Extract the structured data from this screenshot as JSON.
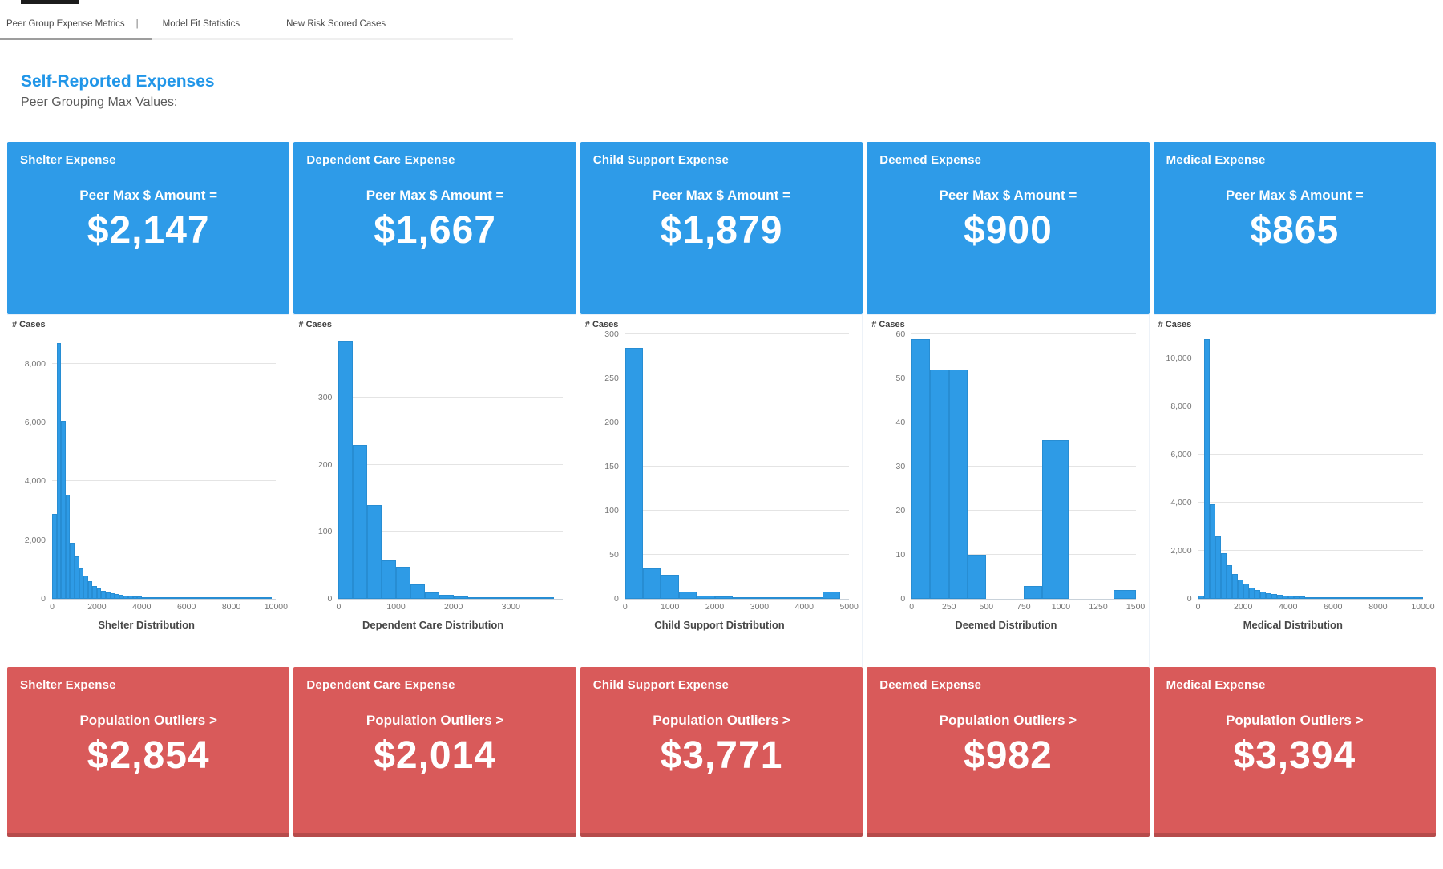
{
  "tabs": {
    "separator": "|",
    "items": [
      {
        "label": "Peer Group Expense Metrics",
        "active": true
      },
      {
        "label": "Model Fit Statistics",
        "active": false
      },
      {
        "label": "New Risk Scored Cases",
        "active": false
      }
    ]
  },
  "page": {
    "title": "Self-Reported Expenses",
    "subtitle": "Peer Grouping Max Values:"
  },
  "colors": {
    "tile_blue": "#2E9BE8",
    "tile_red": "#D95A5A",
    "bar_blue": "#2E9BE6",
    "title_blue": "#2196E8"
  },
  "columns": [
    {
      "name": "Shelter Expense",
      "peer_label": "Peer Max $ Amount =",
      "peer_value": "$2,147",
      "outlier_label": "Population Outliers >",
      "outlier_value": "$2,854"
    },
    {
      "name": "Dependent Care Expense",
      "peer_label": "Peer Max $ Amount =",
      "peer_value": "$1,667",
      "outlier_label": "Population Outliers >",
      "outlier_value": "$2,014"
    },
    {
      "name": "Child Support Expense",
      "peer_label": "Peer Max $ Amount =",
      "peer_value": "$1,879",
      "outlier_label": "Population Outliers >",
      "outlier_value": "$3,771"
    },
    {
      "name": "Deemed Expense",
      "peer_label": "Peer Max $ Amount =",
      "peer_value": "$900",
      "outlier_label": "Population Outliers >",
      "outlier_value": "$982"
    },
    {
      "name": "Medical Expense",
      "peer_label": "Peer Max $ Amount =",
      "peer_value": "$865",
      "outlier_label": "Population Outliers >",
      "outlier_value": "$3,394"
    }
  ],
  "chart_data": [
    {
      "type": "bar",
      "subtype": "histogram",
      "title": "Shelter Distribution",
      "ylabel": "# Cases",
      "xlim": [
        0,
        10000
      ],
      "ylim": [
        0,
        9000
      ],
      "xticks": [
        0,
        2000,
        4000,
        6000,
        8000,
        10000
      ],
      "xtick_labels": [
        "0",
        "2000",
        "4000",
        "6000",
        "8000",
        "10000"
      ],
      "yticks": [
        0,
        2000,
        4000,
        6000,
        8000
      ],
      "ytick_labels": [
        "0",
        "2,000",
        "4,000",
        "6,000",
        "8,000"
      ],
      "grid": true,
      "legend": "none",
      "bin_start": 0,
      "bin_width": 200,
      "values": [
        2900,
        8700,
        6050,
        3550,
        1900,
        1450,
        1050,
        800,
        600,
        450,
        350,
        280,
        230,
        190,
        160,
        135,
        115,
        100,
        85,
        75,
        65,
        58,
        52,
        46,
        42,
        38,
        34,
        31,
        28,
        26,
        24,
        22,
        20,
        19,
        18,
        17,
        16,
        15,
        14,
        13,
        12,
        12,
        11,
        11,
        10,
        10,
        9,
        9,
        8
      ]
    },
    {
      "type": "bar",
      "subtype": "histogram",
      "title": "Dependent Care Distribution",
      "ylabel": "# Cases",
      "xlim": [
        0,
        3900
      ],
      "ylim": [
        0,
        395
      ],
      "xticks": [
        0,
        1000,
        2000,
        3000
      ],
      "xtick_labels": [
        "0",
        "1000",
        "2000",
        "3000"
      ],
      "yticks": [
        0,
        100,
        200,
        300
      ],
      "ytick_labels": [
        "0",
        "100",
        "200",
        "300"
      ],
      "grid": true,
      "legend": "none",
      "bin_start": 0,
      "bin_width": 250,
      "values": [
        385,
        230,
        140,
        57,
        48,
        22,
        10,
        6,
        4,
        3,
        2.5,
        2,
        2,
        1.5,
        1.5
      ]
    },
    {
      "type": "bar",
      "subtype": "histogram",
      "title": "Child Support Distribution",
      "ylabel": "# Cases",
      "xlim": [
        0,
        5000
      ],
      "ylim": [
        0,
        300
      ],
      "xticks": [
        0,
        1000,
        2000,
        3000,
        4000,
        5000
      ],
      "xtick_labels": [
        "0",
        "1000",
        "2000",
        "3000",
        "4000",
        "5000"
      ],
      "yticks": [
        0,
        50,
        100,
        150,
        200,
        250,
        300
      ],
      "ytick_labels": [
        "0",
        "50",
        "100",
        "150",
        "200",
        "250",
        "300"
      ],
      "grid": true,
      "legend": "none",
      "bin_start": 0,
      "bin_width": 400,
      "values": [
        285,
        35,
        27,
        8,
        4,
        3,
        2,
        2,
        2,
        2,
        2,
        8
      ]
    },
    {
      "type": "bar",
      "subtype": "histogram",
      "title": "Deemed Distribution",
      "ylabel": "# Cases",
      "xlim": [
        0,
        1500
      ],
      "ylim": [
        0,
        60
      ],
      "xticks": [
        0,
        250,
        500,
        750,
        1000,
        1250,
        1500
      ],
      "xtick_labels": [
        "0",
        "250",
        "500",
        "750",
        "1000",
        "1250",
        "1500"
      ],
      "yticks": [
        0,
        10,
        20,
        30,
        40,
        50,
        60
      ],
      "ytick_labels": [
        "0",
        "10",
        "20",
        "30",
        "40",
        "50",
        "60"
      ],
      "grid": true,
      "legend": "none",
      "bars": [
        [
          0,
          125,
          59
        ],
        [
          125,
          250,
          52
        ],
        [
          250,
          375,
          52
        ],
        [
          375,
          500,
          10
        ],
        [
          750,
          875,
          3
        ],
        [
          875,
          1050,
          36
        ],
        [
          1350,
          1500,
          2
        ]
      ]
    },
    {
      "type": "bar",
      "subtype": "histogram",
      "title": "Medical Distribution",
      "ylabel": "# Cases",
      "xlim": [
        0,
        10000
      ],
      "ylim": [
        0,
        11000
      ],
      "xticks": [
        0,
        2000,
        4000,
        6000,
        8000,
        10000
      ],
      "xtick_labels": [
        "0",
        "2000",
        "4000",
        "6000",
        "8000",
        "10000"
      ],
      "yticks": [
        0,
        2000,
        4000,
        6000,
        8000,
        10000
      ],
      "ytick_labels": [
        "0",
        "2,000",
        "4,000",
        "6,000",
        "8,000",
        "10,000"
      ],
      "grid": true,
      "legend": "none",
      "bin_start": 0,
      "bin_width": 250,
      "values": [
        150,
        10800,
        3950,
        2600,
        1900,
        1400,
        1050,
        800,
        620,
        480,
        380,
        300,
        245,
        200,
        165,
        140,
        120,
        100,
        88,
        76,
        66,
        58,
        52,
        46,
        41,
        37,
        33,
        30,
        27,
        25,
        23,
        21,
        19,
        18,
        17,
        16,
        15,
        14,
        13,
        12
      ]
    }
  ]
}
